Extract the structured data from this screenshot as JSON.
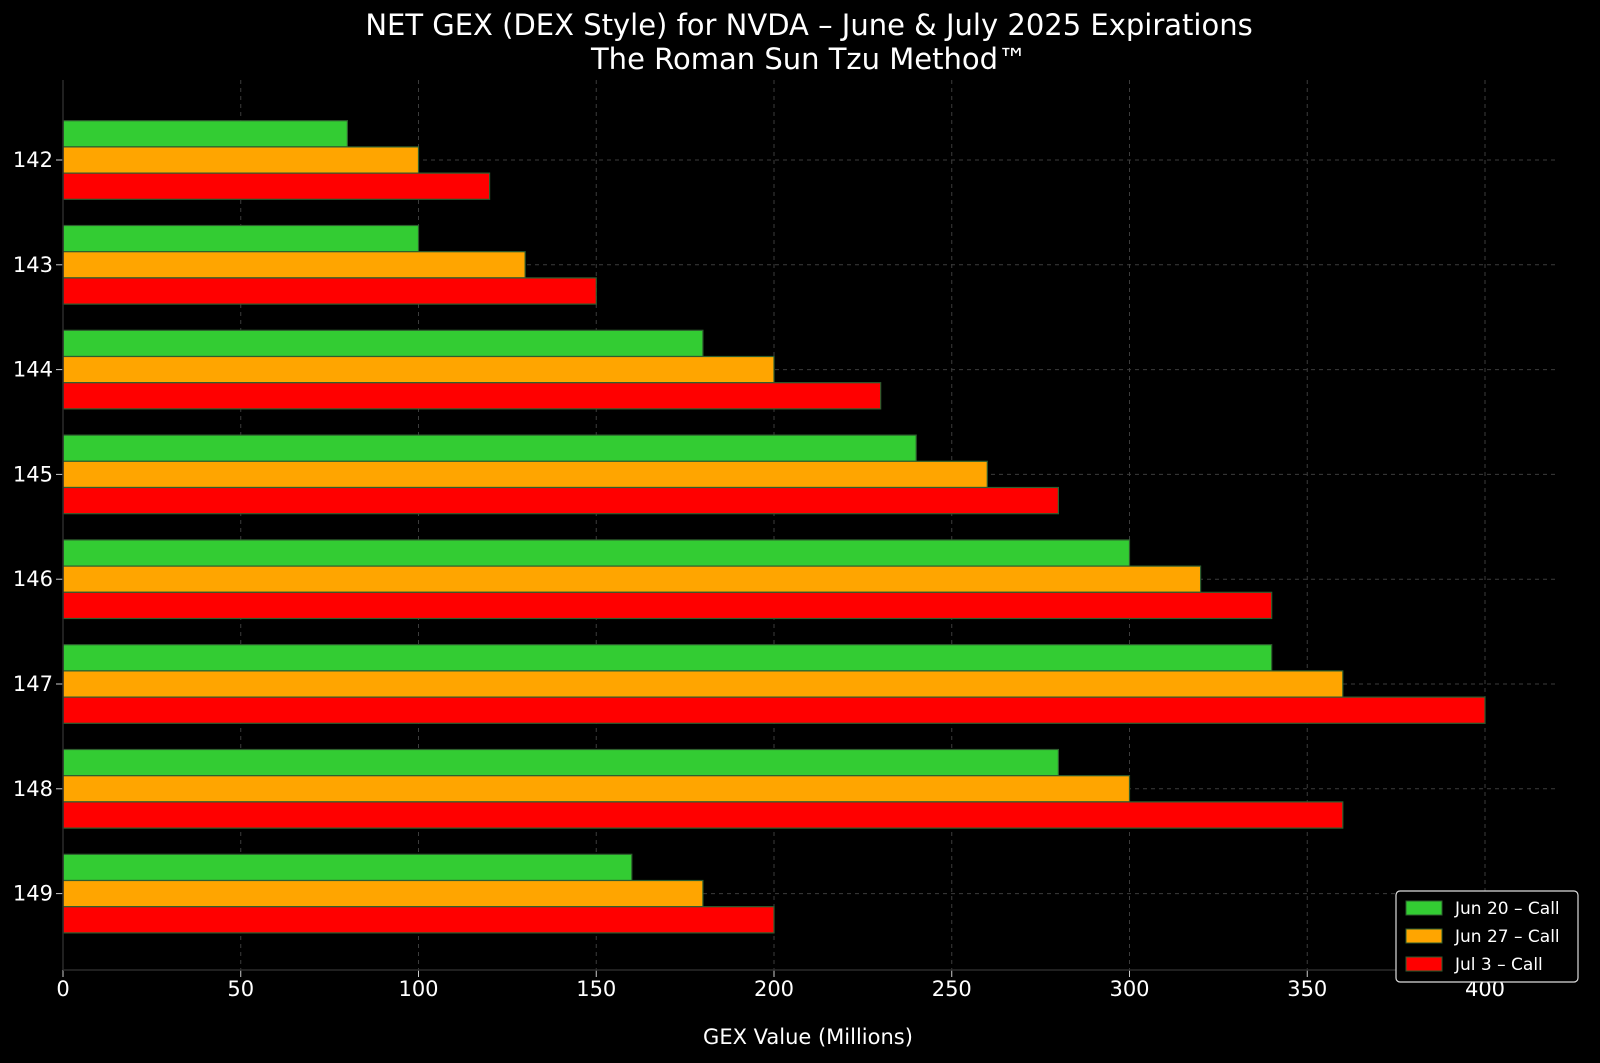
{
  "chart_data": {
    "type": "bar",
    "orientation": "horizontal",
    "title": "NET GEX (DEX Style) for NVDA – June & July 2025 Expirations",
    "subtitle": "The Roman Sun Tzu Method™",
    "xlabel": "GEX Value (Millions)",
    "ylabel": "",
    "xlim": [
      0,
      420
    ],
    "x_ticks": [
      0,
      50,
      100,
      150,
      200,
      250,
      300,
      350,
      400
    ],
    "categories": [
      "142",
      "143",
      "144",
      "145",
      "146",
      "147",
      "148",
      "149"
    ],
    "series": [
      {
        "name": "Jun 20 – Call",
        "color": "#33cc33",
        "values": [
          80,
          100,
          180,
          240,
          300,
          340,
          280,
          160
        ]
      },
      {
        "name": "Jun 27 – Call",
        "color": "#ffa500",
        "values": [
          100,
          130,
          200,
          260,
          320,
          360,
          300,
          180
        ]
      },
      {
        "name": "Jul 3 – Call",
        "color": "#ff0000",
        "values": [
          120,
          150,
          230,
          280,
          340,
          400,
          360,
          200
        ]
      }
    ],
    "grid": true,
    "legend_position": "bottom-right",
    "background_color": "#000000",
    "bar_edge_color": "#2e5e2e"
  }
}
